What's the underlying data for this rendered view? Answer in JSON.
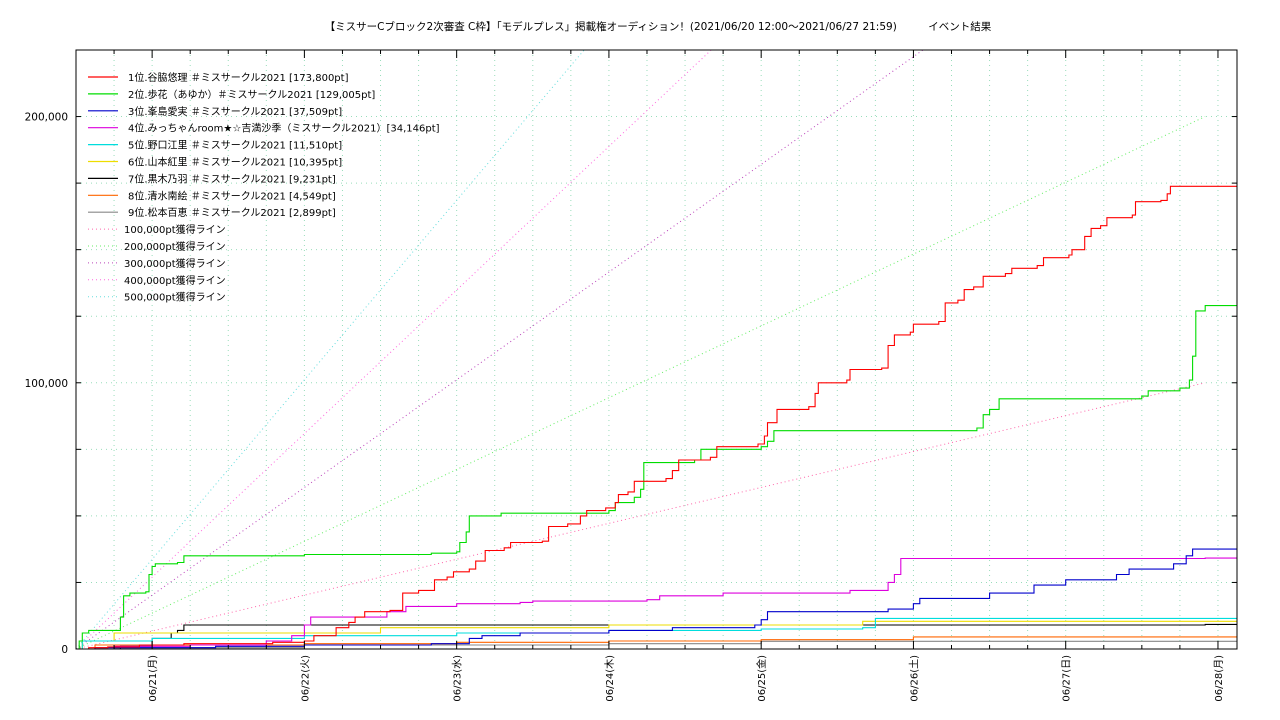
{
  "chart_data": {
    "type": "line",
    "title": "【ミスサーCブロック2次審査 C枠】「モデルプレス」掲載権オーディション！(2021/06/20 12:00〜2021/06/27 21:59)　　　イベント結果",
    "xlabel": "",
    "ylabel": "",
    "x_range": [
      "2021-06-20 12:00",
      "2021-06-28 03:00"
    ],
    "ylim": [
      0,
      225000
    ],
    "y_ticks": [
      {
        "value": 0,
        "label": "0"
      },
      {
        "value": 100000,
        "label": "100,000"
      },
      {
        "value": 200000,
        "label": "200,000"
      }
    ],
    "x_ticks": [
      "06/21(月)",
      "06/22(火)",
      "06/23(水)",
      "06/24(木)",
      "06/25(金)",
      "06/26(土)",
      "06/27(日)",
      "06/28(月)"
    ],
    "grid": true,
    "legend_position": "top-left",
    "series": [
      {
        "name": "1位.谷脇悠理 ＃ミスサークル2021 [173,800pt]",
        "color": "#ff0000",
        "points": [
          [
            "2021-06-20 12:00",
            0
          ],
          [
            "2021-06-20 14:00",
            500
          ],
          [
            "2021-06-20 17:00",
            800
          ],
          [
            "2021-06-20 22:00",
            1500
          ],
          [
            "2021-06-21 05:00",
            2000
          ],
          [
            "2021-06-21 13:00",
            2000
          ],
          [
            "2021-06-21 19:00",
            2500
          ],
          [
            "2021-06-22 00:00",
            3000
          ],
          [
            "2021-06-22 01:30",
            5000
          ],
          [
            "2021-06-22 05:00",
            8000
          ],
          [
            "2021-06-22 07:00",
            10000
          ],
          [
            "2021-06-22 08:00",
            12000
          ],
          [
            "2021-06-22 09:30",
            14000
          ],
          [
            "2021-06-22 13:30",
            14500
          ],
          [
            "2021-06-22 15:30",
            21000
          ],
          [
            "2021-06-22 18:00",
            22000
          ],
          [
            "2021-06-22 20:30",
            26000
          ],
          [
            "2021-06-22 22:30",
            27000
          ],
          [
            "2021-06-22 23:30",
            29000
          ],
          [
            "2021-06-23 02:00",
            30000
          ],
          [
            "2021-06-23 03:00",
            33000
          ],
          [
            "2021-06-23 04:30",
            37000
          ],
          [
            "2021-06-23 07:30",
            38000
          ],
          [
            "2021-06-23 08:30",
            40000
          ],
          [
            "2021-06-23 13:30",
            40500
          ],
          [
            "2021-06-23 14:30",
            46000
          ],
          [
            "2021-06-23 17:30",
            47000
          ],
          [
            "2021-06-23 19:30",
            50000
          ],
          [
            "2021-06-23 20:30",
            52000
          ],
          [
            "2021-06-23 23:30",
            53000
          ],
          [
            "2021-06-24 01:00",
            55000
          ],
          [
            "2021-06-24 01:30",
            58000
          ],
          [
            "2021-06-24 03:00",
            59000
          ],
          [
            "2021-06-24 04:00",
            63000
          ],
          [
            "2021-06-24 09:00",
            64000
          ],
          [
            "2021-06-24 10:00",
            67000
          ],
          [
            "2021-06-24 11:00",
            71000
          ],
          [
            "2021-06-24 16:00",
            72000
          ],
          [
            "2021-06-24 17:00",
            76000
          ],
          [
            "2021-06-24 23:30",
            77000
          ],
          [
            "2021-06-25 00:30",
            80000
          ],
          [
            "2021-06-25 01:00",
            85000
          ],
          [
            "2021-06-25 02:30",
            90000
          ],
          [
            "2021-06-25 07:30",
            91000
          ],
          [
            "2021-06-25 08:30",
            96000
          ],
          [
            "2021-06-25 09:00",
            100000
          ],
          [
            "2021-06-25 13:30",
            101000
          ],
          [
            "2021-06-25 14:00",
            105000
          ],
          [
            "2021-06-25 19:00",
            105500
          ],
          [
            "2021-06-25 20:00",
            114000
          ],
          [
            "2021-06-25 21:00",
            118000
          ],
          [
            "2021-06-25 23:30",
            119000
          ],
          [
            "2021-06-26 00:00",
            122000
          ],
          [
            "2021-06-26 04:00",
            123000
          ],
          [
            "2021-06-26 05:00",
            130000
          ],
          [
            "2021-06-26 07:00",
            131000
          ],
          [
            "2021-06-26 08:00",
            135000
          ],
          [
            "2021-06-26 09:30",
            136000
          ],
          [
            "2021-06-26 11:00",
            140000
          ],
          [
            "2021-06-26 14:30",
            141000
          ],
          [
            "2021-06-26 15:30",
            143000
          ],
          [
            "2021-06-26 19:30",
            144000
          ],
          [
            "2021-06-26 20:30",
            147000
          ],
          [
            "2021-06-27 00:30",
            148000
          ],
          [
            "2021-06-27 01:00",
            150000
          ],
          [
            "2021-06-27 03:00",
            155000
          ],
          [
            "2021-06-27 04:00",
            158000
          ],
          [
            "2021-06-27 05:30",
            159000
          ],
          [
            "2021-06-27 06:30",
            162000
          ],
          [
            "2021-06-27 10:30",
            163000
          ],
          [
            "2021-06-27 11:00",
            168000
          ],
          [
            "2021-06-27 15:00",
            168500
          ],
          [
            "2021-06-27 16:00",
            171000
          ],
          [
            "2021-06-27 16:30",
            173800
          ],
          [
            "2021-06-27 21:59",
            173800
          ]
        ]
      },
      {
        "name": "2位.歩花（あゆか）＃ミスサークル2021 [129,005pt]",
        "color": "#00dd00",
        "points": [
          [
            "2021-06-20 12:00",
            0
          ],
          [
            "2021-06-20 12:30",
            3000
          ],
          [
            "2021-06-20 13:00",
            6000
          ],
          [
            "2021-06-20 14:00",
            7000
          ],
          [
            "2021-06-20 18:00",
            7000
          ],
          [
            "2021-06-20 19:00",
            12000
          ],
          [
            "2021-06-20 19:30",
            20000
          ],
          [
            "2021-06-20 20:30",
            21000
          ],
          [
            "2021-06-20 23:00",
            21500
          ],
          [
            "2021-06-20 23:30",
            28000
          ],
          [
            "2021-06-21 00:00",
            31000
          ],
          [
            "2021-06-21 00:30",
            32000
          ],
          [
            "2021-06-21 04:00",
            32500
          ],
          [
            "2021-06-21 05:00",
            35000
          ],
          [
            "2021-06-22 00:00",
            35500
          ],
          [
            "2021-06-22 20:00",
            36000
          ],
          [
            "2021-06-23 00:00",
            36500
          ],
          [
            "2021-06-23 00:30",
            40000
          ],
          [
            "2021-06-23 01:30",
            44000
          ],
          [
            "2021-06-23 02:00",
            50000
          ],
          [
            "2021-06-23 07:00",
            51000
          ],
          [
            "2021-06-24 00:00",
            52000
          ],
          [
            "2021-06-24 01:00",
            55000
          ],
          [
            "2021-06-24 04:00",
            57000
          ],
          [
            "2021-06-24 05:00",
            60000
          ],
          [
            "2021-06-24 05:30",
            70000
          ],
          [
            "2021-06-24 13:30",
            71000
          ],
          [
            "2021-06-24 14:30",
            75000
          ],
          [
            "2021-06-25 00:00",
            76000
          ],
          [
            "2021-06-25 01:00",
            78000
          ],
          [
            "2021-06-25 02:00",
            82000
          ],
          [
            "2021-06-26 10:00",
            83000
          ],
          [
            "2021-06-26 11:00",
            88000
          ],
          [
            "2021-06-26 12:00",
            90000
          ],
          [
            "2021-06-26 13:30",
            94000
          ],
          [
            "2021-06-27 12:00",
            95000
          ],
          [
            "2021-06-27 13:00",
            97000
          ],
          [
            "2021-06-27 18:00",
            98000
          ],
          [
            "2021-06-27 19:30",
            101000
          ],
          [
            "2021-06-27 20:00",
            110000
          ],
          [
            "2021-06-27 20:30",
            127000
          ],
          [
            "2021-06-27 21:59",
            129005
          ]
        ]
      },
      {
        "name": "3位.峯島愛実 ＃ミスサークル2021 [37,509pt]",
        "color": "#0000cc",
        "points": [
          [
            "2021-06-20 12:00",
            0
          ],
          [
            "2021-06-20 15:00",
            500
          ],
          [
            "2021-06-21 10:00",
            1000
          ],
          [
            "2021-06-22 00:00",
            1500
          ],
          [
            "2021-06-22 20:00",
            2000
          ],
          [
            "2021-06-23 02:00",
            4000
          ],
          [
            "2021-06-23 04:00",
            5000
          ],
          [
            "2021-06-23 10:00",
            6000
          ],
          [
            "2021-06-24 00:00",
            7000
          ],
          [
            "2021-06-24 10:00",
            8000
          ],
          [
            "2021-06-24 23:00",
            9000
          ],
          [
            "2021-06-25 00:00",
            11000
          ],
          [
            "2021-06-25 01:00",
            14000
          ],
          [
            "2021-06-25 20:00",
            15000
          ],
          [
            "2021-06-26 00:00",
            17000
          ],
          [
            "2021-06-26 01:00",
            19000
          ],
          [
            "2021-06-26 12:00",
            21000
          ],
          [
            "2021-06-26 19:00",
            24000
          ],
          [
            "2021-06-27 00:00",
            26000
          ],
          [
            "2021-06-27 08:00",
            28000
          ],
          [
            "2021-06-27 10:00",
            30000
          ],
          [
            "2021-06-27 17:00",
            32000
          ],
          [
            "2021-06-27 19:00",
            35000
          ],
          [
            "2021-06-27 20:00",
            37509
          ],
          [
            "2021-06-27 21:59",
            37509
          ]
        ]
      },
      {
        "name": "4位.みっちゃんroom★☆吉満沙季（ミスサークル2021）[34,146pt]",
        "color": "#dd00dd",
        "points": [
          [
            "2021-06-20 12:00",
            0
          ],
          [
            "2021-06-20 18:00",
            1000
          ],
          [
            "2021-06-21 06:00",
            1500
          ],
          [
            "2021-06-21 18:00",
            3000
          ],
          [
            "2021-06-21 22:00",
            5000
          ],
          [
            "2021-06-22 00:00",
            9000
          ],
          [
            "2021-06-22 01:00",
            12000
          ],
          [
            "2021-06-22 13:00",
            14000
          ],
          [
            "2021-06-22 16:00",
            16000
          ],
          [
            "2021-06-23 00:00",
            17000
          ],
          [
            "2021-06-23 10:00",
            17500
          ],
          [
            "2021-06-23 12:00",
            18000
          ],
          [
            "2021-06-24 06:00",
            18500
          ],
          [
            "2021-06-24 08:00",
            20000
          ],
          [
            "2021-06-24 18:00",
            21000
          ],
          [
            "2021-06-25 14:00",
            22000
          ],
          [
            "2021-06-25 20:00",
            25000
          ],
          [
            "2021-06-25 21:00",
            28000
          ],
          [
            "2021-06-25 22:00",
            34000
          ],
          [
            "2021-06-27 21:59",
            34146
          ]
        ]
      },
      {
        "name": "5位.野口江里 ＃ミスサークル2021 [11,510pt]",
        "color": "#00dddd",
        "points": [
          [
            "2021-06-20 12:00",
            0
          ],
          [
            "2021-06-20 13:00",
            3000
          ],
          [
            "2021-06-21 00:00",
            4000
          ],
          [
            "2021-06-22 00:00",
            5000
          ],
          [
            "2021-06-23 00:00",
            6000
          ],
          [
            "2021-06-24 00:00",
            7000
          ],
          [
            "2021-06-25 00:00",
            7500
          ],
          [
            "2021-06-25 16:00",
            8000
          ],
          [
            "2021-06-25 18:00",
            11510
          ],
          [
            "2021-06-27 21:59",
            11510
          ]
        ]
      },
      {
        "name": "6位.山本紅里 ＃ミスサークル2021 [10,395pt]",
        "color": "#eedd00",
        "points": [
          [
            "2021-06-20 12:00",
            0
          ],
          [
            "2021-06-20 13:00",
            3000
          ],
          [
            "2021-06-20 18:00",
            6000
          ],
          [
            "2021-06-22 12:00",
            8000
          ],
          [
            "2021-06-24 00:00",
            9000
          ],
          [
            "2021-06-25 16:00",
            10395
          ],
          [
            "2021-06-27 21:59",
            10395
          ]
        ]
      },
      {
        "name": "7位.黒木乃羽 ＃ミスサークル2021 [9,231pt]",
        "color": "#000000",
        "points": [
          [
            "2021-06-20 12:00",
            0
          ],
          [
            "2021-06-20 19:00",
            1000
          ],
          [
            "2021-06-21 00:00",
            4000
          ],
          [
            "2021-06-21 03:00",
            6000
          ],
          [
            "2021-06-21 04:00",
            7000
          ],
          [
            "2021-06-21 05:00",
            9000
          ],
          [
            "2021-06-27 21:59",
            9231
          ]
        ]
      },
      {
        "name": "8位.清水南絵 ＃ミスサークル2021 [4,549pt]",
        "color": "#ff6600",
        "points": [
          [
            "2021-06-20 12:00",
            0
          ],
          [
            "2021-06-20 15:00",
            1500
          ],
          [
            "2021-06-22 00:00",
            2000
          ],
          [
            "2021-06-23 00:00",
            2500
          ],
          [
            "2021-06-24 00:00",
            3000
          ],
          [
            "2021-06-25 00:00",
            3500
          ],
          [
            "2021-06-26 00:00",
            4549
          ],
          [
            "2021-06-27 21:59",
            4549
          ]
        ]
      },
      {
        "name": "9位.松本百恵 ＃ミスサークル2021 [2,899pt]",
        "color": "#888888",
        "points": [
          [
            "2021-06-20 12:00",
            0
          ],
          [
            "2021-06-20 18:00",
            500
          ],
          [
            "2021-06-22 00:00",
            1500
          ],
          [
            "2021-06-24 00:00",
            2000
          ],
          [
            "2021-06-25 00:00",
            2899
          ],
          [
            "2021-06-27 21:59",
            2899
          ]
        ]
      }
    ],
    "reference_lines": [
      {
        "name": "100,000pt獲得ライン",
        "color": "#ff66aa",
        "target": 100000
      },
      {
        "name": "200,000pt獲得ライン",
        "color": "#66ee66",
        "target": 200000
      },
      {
        "name": "300,000pt獲得ライン",
        "color": "#bb44bb",
        "target": 300000
      },
      {
        "name": "400,000pt獲得ライン",
        "color": "#ff66dd",
        "target": 400000
      },
      {
        "name": "500,000pt獲得ライン",
        "color": "#66dddd",
        "target": 500000
      }
    ]
  }
}
